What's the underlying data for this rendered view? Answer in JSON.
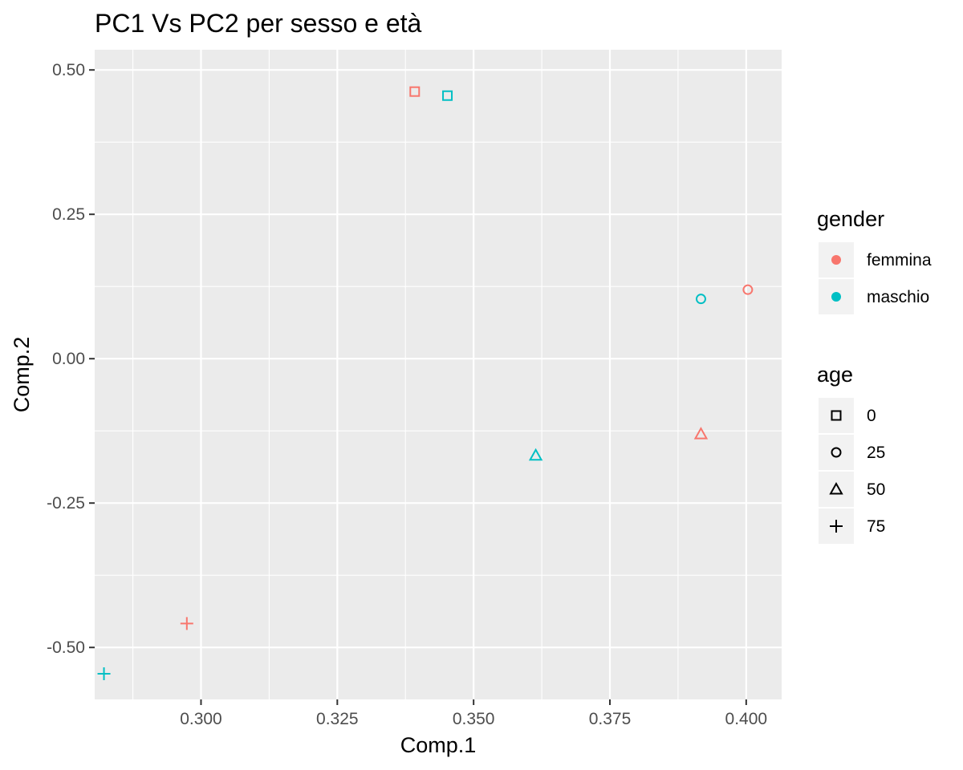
{
  "chart_data": {
    "type": "scatter",
    "title": "PC1 Vs PC2 per sesso e età",
    "xlabel": "Comp.1",
    "ylabel": "Comp.2",
    "xlim": [
      0.2805,
      0.4065
    ],
    "ylim": [
      -0.59,
      0.535
    ],
    "x_ticks": [
      {
        "value": 0.3,
        "label": "0.300"
      },
      {
        "value": 0.325,
        "label": "0.325"
      },
      {
        "value": 0.35,
        "label": "0.350"
      },
      {
        "value": 0.375,
        "label": "0.375"
      },
      {
        "value": 0.4,
        "label": "0.400"
      }
    ],
    "y_ticks": [
      {
        "value": 0.5,
        "label": "0.50"
      },
      {
        "value": 0.25,
        "label": "0.25"
      },
      {
        "value": 0.0,
        "label": "0.00"
      },
      {
        "value": -0.25,
        "label": "-0.25"
      },
      {
        "value": -0.5,
        "label": "-0.50"
      }
    ],
    "grid": true,
    "legend_position": "right",
    "legends": {
      "gender": {
        "title": "gender",
        "entries": [
          {
            "label": "femmina",
            "color": "#F8766D"
          },
          {
            "label": "maschio",
            "color": "#00BFC4"
          }
        ]
      },
      "age": {
        "title": "age",
        "entries": [
          {
            "label": "0",
            "shape": "square"
          },
          {
            "label": "25",
            "shape": "circle"
          },
          {
            "label": "50",
            "shape": "triangle"
          },
          {
            "label": "75",
            "shape": "plus"
          }
        ]
      }
    },
    "points": [
      {
        "x": 0.3392,
        "y": 0.4625,
        "gender": "femmina",
        "age": "0"
      },
      {
        "x": 0.3452,
        "y": 0.4555,
        "gender": "maschio",
        "age": "0"
      },
      {
        "x": 0.4003,
        "y": 0.1195,
        "gender": "femmina",
        "age": "25"
      },
      {
        "x": 0.3917,
        "y": 0.1035,
        "gender": "maschio",
        "age": "25"
      },
      {
        "x": 0.3917,
        "y": -0.1305,
        "gender": "femmina",
        "age": "50"
      },
      {
        "x": 0.3614,
        "y": -0.1675,
        "gender": "maschio",
        "age": "50"
      },
      {
        "x": 0.2974,
        "y": -0.4585,
        "gender": "femmina",
        "age": "75"
      },
      {
        "x": 0.2822,
        "y": -0.5455,
        "gender": "maschio",
        "age": "75"
      }
    ]
  },
  "colors": {
    "panel_background": "#EBEBEB",
    "grid_major": "#FFFFFF",
    "tick_text": "#4D4D4D",
    "legend_key_background": "#F2F2F2"
  }
}
